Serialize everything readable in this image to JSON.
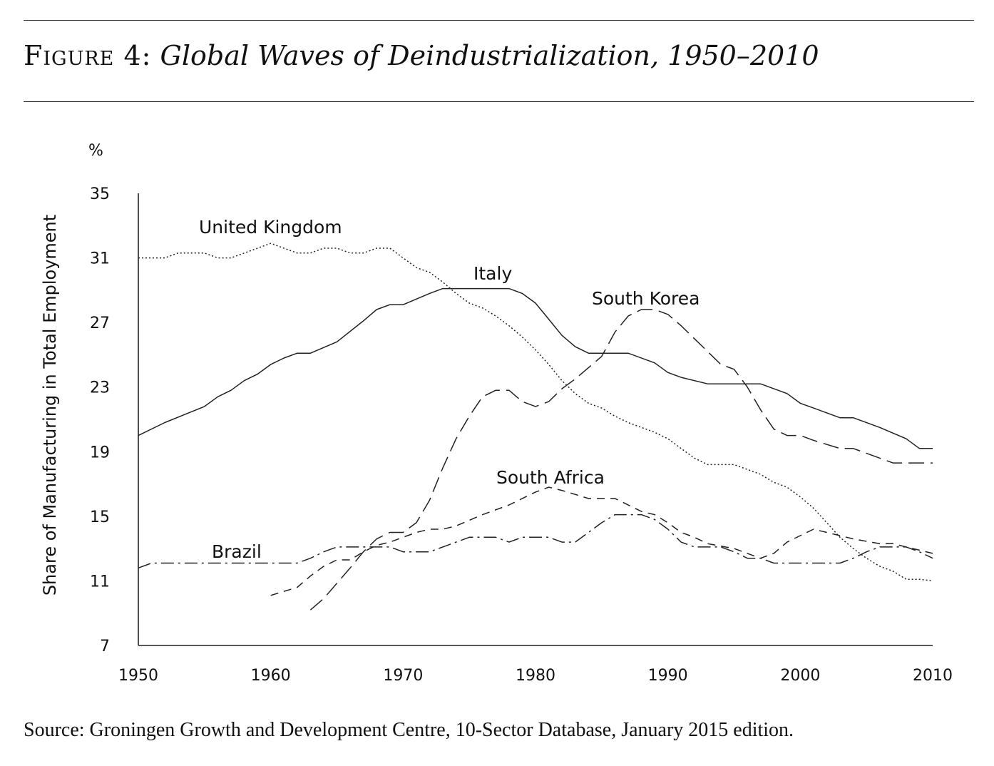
{
  "figure": {
    "number_label": "Figure 4:",
    "title": "Global Waves of Deindustrialization, 1950–2010",
    "source": "Source: Groningen Growth and Development Centre, 10-Sector Database, January 2015 edition."
  },
  "chart_data": {
    "type": "line",
    "title": "Global Waves of Deindustrialization, 1950–2010",
    "xlabel": "",
    "ylabel": "Share of Manufacturing in Total Employment",
    "yunit": "%",
    "xlim": [
      1950,
      2010
    ],
    "ylim": [
      7,
      35
    ],
    "xticks": [
      1950,
      1960,
      1970,
      1980,
      1990,
      2000,
      2010
    ],
    "yticks": [
      7,
      11,
      15,
      19,
      23,
      27,
      31,
      35
    ],
    "grid": false,
    "legend": "none",
    "series": [
      {
        "name": "United Kingdom",
        "style": "dotted",
        "x": [
          1950,
          1951,
          1952,
          1953,
          1954,
          1955,
          1956,
          1957,
          1958,
          1959,
          1960,
          1961,
          1962,
          1963,
          1964,
          1965,
          1966,
          1967,
          1968,
          1969,
          1970,
          1971,
          1972,
          1973,
          1974,
          1975,
          1976,
          1977,
          1978,
          1979,
          1980,
          1981,
          1982,
          1983,
          1984,
          1985,
          1986,
          1987,
          1988,
          1989,
          1990,
          1991,
          1992,
          1993,
          1994,
          1995,
          1996,
          1997,
          1998,
          1999,
          2000,
          2001,
          2002,
          2003,
          2004,
          2005,
          2006,
          2007,
          2008,
          2009,
          2010
        ],
        "y": [
          31.0,
          31.0,
          31.0,
          31.3,
          31.3,
          31.3,
          31.0,
          31.0,
          31.3,
          31.6,
          31.9,
          31.6,
          31.3,
          31.3,
          31.6,
          31.6,
          31.3,
          31.3,
          31.6,
          31.6,
          31.0,
          30.4,
          30.1,
          29.5,
          28.8,
          28.2,
          27.9,
          27.4,
          26.8,
          26.1,
          25.3,
          24.4,
          23.4,
          22.6,
          22.0,
          21.7,
          21.2,
          20.8,
          20.5,
          20.2,
          19.8,
          19.2,
          18.6,
          18.2,
          18.2,
          18.2,
          17.9,
          17.6,
          17.1,
          16.8,
          16.2,
          15.5,
          14.6,
          13.7,
          13.0,
          12.4,
          11.9,
          11.6,
          11.1,
          11.1,
          11.0
        ]
      },
      {
        "name": "Italy",
        "style": "solid",
        "x": [
          1950,
          1952,
          1955,
          1956,
          1957,
          1958,
          1959,
          1960,
          1961,
          1962,
          1963,
          1965,
          1967,
          1968,
          1969,
          1970,
          1972,
          1973,
          1974,
          1976,
          1978,
          1979,
          1980,
          1981,
          1982,
          1983,
          1984,
          1985,
          1987,
          1989,
          1990,
          1991,
          1993,
          1995,
          1996,
          1997,
          1999,
          2000,
          2001,
          2002,
          2003,
          2004,
          2006,
          2008,
          2009,
          2010
        ],
        "y": [
          20.0,
          20.8,
          21.8,
          22.4,
          22.8,
          23.4,
          23.8,
          24.4,
          24.8,
          25.1,
          25.1,
          25.8,
          27.1,
          27.8,
          28.1,
          28.1,
          28.8,
          29.1,
          29.1,
          29.1,
          29.1,
          28.8,
          28.2,
          27.2,
          26.2,
          25.5,
          25.1,
          25.1,
          25.1,
          24.5,
          23.9,
          23.6,
          23.2,
          23.2,
          23.2,
          23.2,
          22.6,
          22.0,
          21.7,
          21.4,
          21.1,
          21.1,
          20.5,
          19.8,
          19.2,
          19.2
        ]
      },
      {
        "name": "South Korea",
        "style": "long-dash",
        "x": [
          1963,
          1964,
          1966,
          1967,
          1968,
          1969,
          1970,
          1971,
          1972,
          1973,
          1974,
          1975,
          1976,
          1977,
          1978,
          1979,
          1980,
          1981,
          1982,
          1983,
          1985,
          1986,
          1987,
          1988,
          1989,
          1990,
          1991,
          1993,
          1994,
          1995,
          1996,
          1997,
          1998,
          1999,
          2000,
          2001,
          2003,
          2004,
          2005,
          2006,
          2007,
          2008,
          2009,
          2010
        ],
        "y": [
          9.2,
          9.9,
          11.8,
          12.8,
          13.6,
          14.0,
          14.0,
          14.6,
          16.0,
          18.0,
          19.8,
          21.2,
          22.4,
          22.8,
          22.8,
          22.1,
          21.8,
          22.1,
          22.9,
          23.5,
          24.9,
          26.4,
          27.4,
          27.8,
          27.8,
          27.5,
          26.8,
          25.2,
          24.4,
          24.1,
          23.0,
          21.6,
          20.4,
          20.0,
          20.0,
          19.7,
          19.2,
          19.2,
          18.9,
          18.6,
          18.3,
          18.3,
          18.3,
          18.3
        ]
      },
      {
        "name": "South Africa",
        "style": "short-dash",
        "x": [
          1960,
          1962,
          1963,
          1964,
          1965,
          1966,
          1967,
          1968,
          1969,
          1970,
          1971,
          1972,
          1973,
          1974,
          1976,
          1978,
          1980,
          1981,
          1982,
          1984,
          1985,
          1986,
          1988,
          1989,
          1990,
          1991,
          1992,
          1993,
          1995,
          1996,
          1997,
          1998,
          1999,
          2000,
          2001,
          2002,
          2003,
          2004,
          2006,
          2007,
          2008,
          2009,
          2010
        ],
        "y": [
          10.1,
          10.6,
          11.3,
          11.9,
          12.3,
          12.3,
          12.8,
          13.2,
          13.4,
          13.7,
          14.0,
          14.2,
          14.2,
          14.4,
          15.1,
          15.7,
          16.5,
          16.8,
          16.6,
          16.1,
          16.1,
          16.1,
          15.3,
          15.1,
          14.6,
          14.0,
          13.7,
          13.3,
          13.0,
          12.7,
          12.4,
          12.7,
          13.4,
          13.8,
          14.2,
          14.0,
          13.8,
          13.6,
          13.3,
          13.3,
          13.1,
          12.9,
          12.7
        ]
      },
      {
        "name": "Brazil",
        "style": "dash-dot",
        "x": [
          1950,
          1951,
          1955,
          1960,
          1962,
          1963,
          1964,
          1965,
          1966,
          1967,
          1968,
          1969,
          1970,
          1971,
          1972,
          1973,
          1974,
          1975,
          1976,
          1977,
          1978,
          1979,
          1980,
          1981,
          1982,
          1983,
          1984,
          1985,
          1986,
          1987,
          1988,
          1989,
          1990,
          1991,
          1992,
          1994,
          1995,
          1996,
          1997,
          1998,
          1999,
          2000,
          2002,
          2003,
          2004,
          2005,
          2006,
          2007,
          2008,
          2009,
          2010
        ],
        "y": [
          11.8,
          12.1,
          12.1,
          12.1,
          12.1,
          12.4,
          12.8,
          13.1,
          13.1,
          13.1,
          13.1,
          13.1,
          12.8,
          12.8,
          12.8,
          13.1,
          13.4,
          13.7,
          13.7,
          13.7,
          13.4,
          13.7,
          13.7,
          13.7,
          13.4,
          13.4,
          14.0,
          14.6,
          15.1,
          15.1,
          15.1,
          14.8,
          14.2,
          13.4,
          13.1,
          13.1,
          12.8,
          12.4,
          12.4,
          12.1,
          12.1,
          12.1,
          12.1,
          12.1,
          12.4,
          12.8,
          13.1,
          13.1,
          13.1,
          12.8,
          12.4
        ]
      }
    ],
    "annotations": [
      {
        "text": "United Kingdom",
        "series": "United Kingdom"
      },
      {
        "text": "Italy",
        "series": "Italy"
      },
      {
        "text": "South Korea",
        "series": "South Korea"
      },
      {
        "text": "South Africa",
        "series": "South Africa"
      },
      {
        "text": "Brazil",
        "series": "Brazil"
      }
    ]
  }
}
